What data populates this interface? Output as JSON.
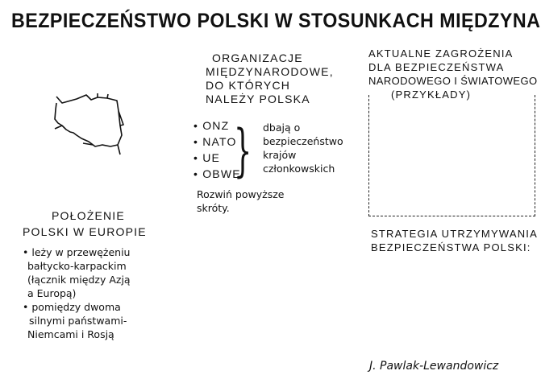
{
  "title": "BEZPIECZEŃSTWO POLSKI W STOSUNKACH MIĘDZYNAR",
  "map": {
    "icon": "poland-outline-map"
  },
  "organizations": {
    "heading": [
      "ORGANIZACJE",
      "MIĘDZYNARODOWE,",
      "DO KTÓRYCH",
      "NALEŻY POLSKA"
    ],
    "items": [
      "ONZ",
      "NATO",
      "UE",
      "OBWE"
    ],
    "note": [
      "dbają o",
      "bezpieczeństwo",
      "krajów",
      "członkowskich"
    ],
    "task": [
      "Rozwiń powyższe",
      "skróty."
    ]
  },
  "location": {
    "heading": [
      "POŁOŻENIE",
      "POLSKI W EUROPIE"
    ],
    "bullets": [
      [
        "leży w przewężeniu",
        "bałtycko-karpackim",
        "(łącznik między Azją",
        "a Europą)"
      ],
      [
        "pomiędzy dwoma",
        "silnymi państwami-",
        "Niemcami i Rosją"
      ]
    ]
  },
  "threats": {
    "heading": [
      "AKTUALNE ZAGROŻENIA",
      "DLA BEZPIECZEŃSTWA",
      "NARODOWEGO I ŚWIATOWEGO"
    ],
    "subheading": "(PRZYKŁADY)"
  },
  "strategy": {
    "heading": [
      "STRATEGIA UTRZYMYWANIA",
      "BEZPIECZEŃSTWA POLSKI:"
    ]
  },
  "author": "J. Pawlak-Lewandowicz"
}
